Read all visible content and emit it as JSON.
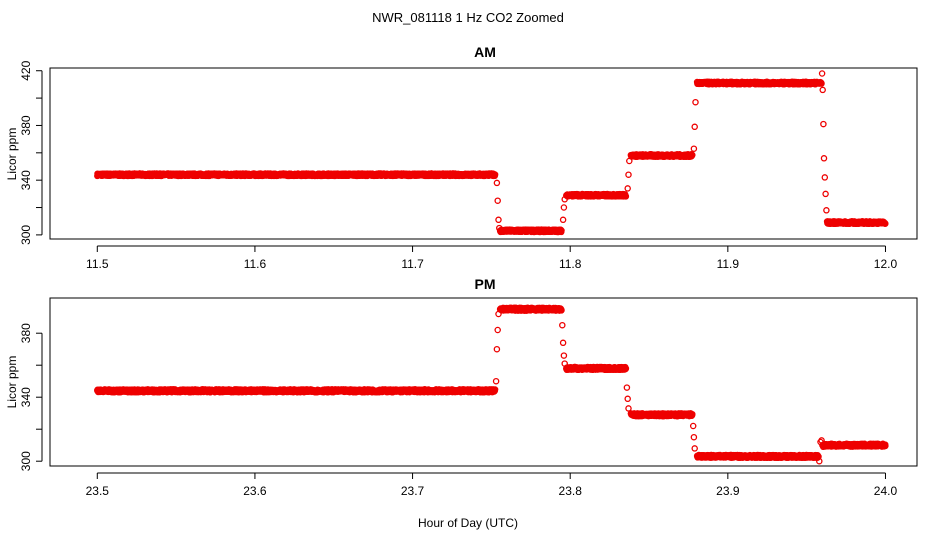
{
  "figure": {
    "title": "NWR_081118  1 Hz CO2 Zoomed",
    "xlabel": "Hour of Day (UTC)",
    "point_color": "#ee0000"
  },
  "chart_data": [
    {
      "type": "scatter",
      "title": "AM",
      "xlabel": "",
      "ylabel": "Licor ppm",
      "xlim": [
        11.47,
        12.02
      ],
      "ylim": [
        297,
        422
      ],
      "xticks": [
        11.5,
        11.6,
        11.7,
        11.8,
        11.9,
        12.0
      ],
      "xtick_labels": [
        "11.5",
        "11.6",
        "11.7",
        "11.8",
        "11.9",
        "12.0"
      ],
      "yticks": [
        300,
        320,
        340,
        360,
        380,
        400,
        420
      ],
      "ytick_labels": [
        "300",
        "",
        "340",
        "",
        "380",
        "",
        "420"
      ],
      "segments": [
        {
          "x_start": 11.5,
          "x_end": 11.7525,
          "y": 344
        },
        {
          "x_start": 11.7555,
          "x_end": 11.7945,
          "y": 303
        },
        {
          "x_start": 11.7975,
          "x_end": 11.8355,
          "y": 329
        },
        {
          "x_start": 11.8385,
          "x_end": 11.8775,
          "y": 358
        },
        {
          "x_start": 11.8805,
          "x_end": 11.9595,
          "y": 411
        },
        {
          "x_start": 11.963,
          "x_end": 12.0,
          "y": 309
        }
      ],
      "transitions": [
        {
          "x": [
            11.7535,
            11.754,
            11.7545,
            11.755
          ],
          "y": [
            338,
            325,
            311,
            305
          ]
        },
        {
          "x": [
            11.7955,
            11.796,
            11.7965
          ],
          "y": [
            311,
            320,
            326
          ]
        },
        {
          "x": [
            11.8365,
            11.837,
            11.8375
          ],
          "y": [
            334,
            344,
            354
          ]
        },
        {
          "x": [
            11.8785,
            11.879,
            11.8795
          ],
          "y": [
            363,
            379,
            397
          ]
        },
        {
          "x": [
            11.9598,
            11.9602,
            11.9606,
            11.961,
            11.9615,
            11.962,
            11.9625
          ],
          "y": [
            418,
            406,
            381,
            356,
            342,
            330,
            318
          ]
        }
      ]
    },
    {
      "type": "scatter",
      "title": "PM",
      "xlabel": "Hour of Day (UTC)",
      "ylabel": "Licor ppm",
      "xlim": [
        23.47,
        24.02
      ],
      "ylim": [
        297,
        402
      ],
      "xticks": [
        23.5,
        23.6,
        23.7,
        23.8,
        23.9,
        24.0
      ],
      "xtick_labels": [
        "23.5",
        "23.6",
        "23.7",
        "23.8",
        "23.9",
        "24.0"
      ],
      "yticks": [
        300,
        320,
        340,
        360,
        380
      ],
      "ytick_labels": [
        "300",
        "",
        "340",
        "",
        "380"
      ],
      "segments": [
        {
          "x_start": 23.5,
          "x_end": 23.7525,
          "y": 344
        },
        {
          "x_start": 23.7555,
          "x_end": 23.7945,
          "y": 395
        },
        {
          "x_start": 23.7975,
          "x_end": 23.8355,
          "y": 358
        },
        {
          "x_start": 23.8385,
          "x_end": 23.8775,
          "y": 329
        },
        {
          "x_start": 23.8805,
          "x_end": 23.9575,
          "y": 303
        },
        {
          "x_start": 23.961,
          "x_end": 24.0,
          "y": 310
        }
      ],
      "transitions": [
        {
          "x": [
            23.753,
            23.7535,
            23.754,
            23.7545
          ],
          "y": [
            350,
            370,
            382,
            392
          ]
        },
        {
          "x": [
            23.795,
            23.7955,
            23.796,
            23.7965
          ],
          "y": [
            385,
            374,
            366,
            361
          ]
        },
        {
          "x": [
            23.836,
            23.8365,
            23.837
          ],
          "y": [
            346,
            339,
            333
          ]
        },
        {
          "x": [
            23.878,
            23.8785,
            23.879
          ],
          "y": [
            322,
            315,
            308
          ]
        },
        {
          "x": [
            23.958,
            23.9588,
            23.9595,
            23.96,
            23.9605
          ],
          "y": [
            300,
            312,
            313,
            310,
            309
          ]
        }
      ]
    }
  ]
}
